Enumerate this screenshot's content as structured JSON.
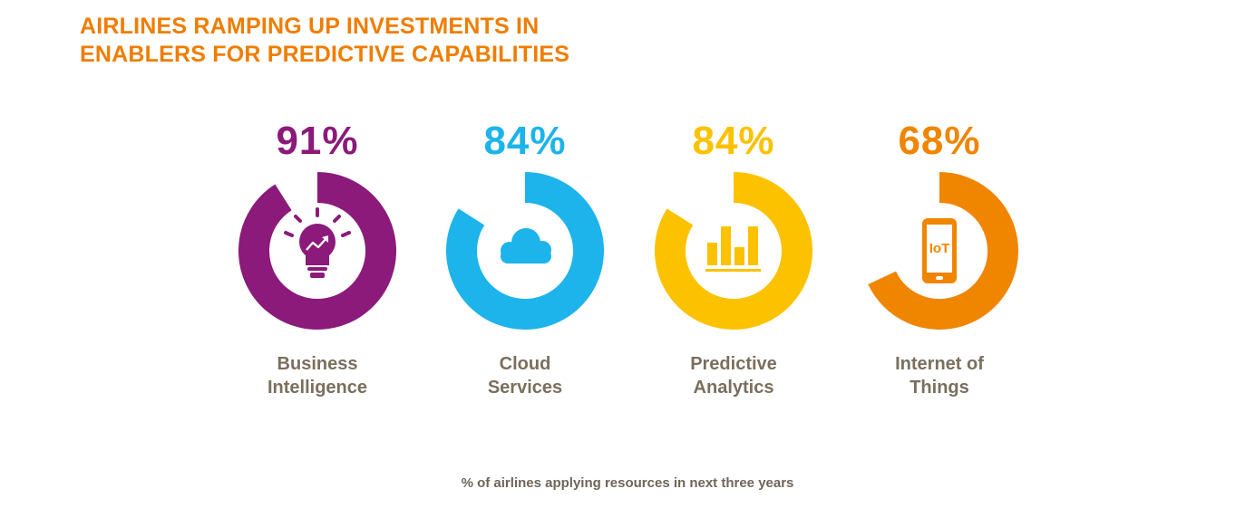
{
  "title": {
    "line1": "AIRLINES RAMPING UP INVESTMENTS IN",
    "line2": "ENABLERS FOR PREDICTIVE CAPABILITIES"
  },
  "footnote": "% of airlines applying resources in next three years",
  "colors": {
    "title": "#ef7d00",
    "label": "#7a6f5e",
    "business_intelligence": "#8b1a7a",
    "cloud_services": "#1cb4ea",
    "predictive_analytics": "#fcc200",
    "internet_of_things": "#f08500"
  },
  "icon_text": {
    "iot": "IoT"
  },
  "chart_data": {
    "type": "pie",
    "subtype": "donut-progress",
    "title": "AIRLINES RAMPING UP INVESTMENTS IN ENABLERS FOR PREDICTIVE CAPABILITIES",
    "caption": "% of airlines applying resources in next three years",
    "categories": [
      "Business Intelligence",
      "Cloud Services",
      "Predictive Analytics",
      "Internet of Things"
    ],
    "values": [
      91,
      84,
      84,
      68
    ],
    "display_values": [
      "91%",
      "84%",
      "84%",
      "68%"
    ],
    "label_lines": [
      [
        "Business",
        "Intelligence"
      ],
      [
        "Cloud",
        "Services"
      ],
      [
        "Predictive",
        "Analytics"
      ],
      [
        "Internet of",
        "Things"
      ]
    ],
    "icons": [
      "lightbulb-chart-icon",
      "cloud-icon",
      "bar-chart-icon",
      "smartphone-iot-icon"
    ],
    "colors": [
      "#8b1a7a",
      "#1cb4ea",
      "#fcc200",
      "#f08500"
    ],
    "unit": "%",
    "max": 100
  }
}
